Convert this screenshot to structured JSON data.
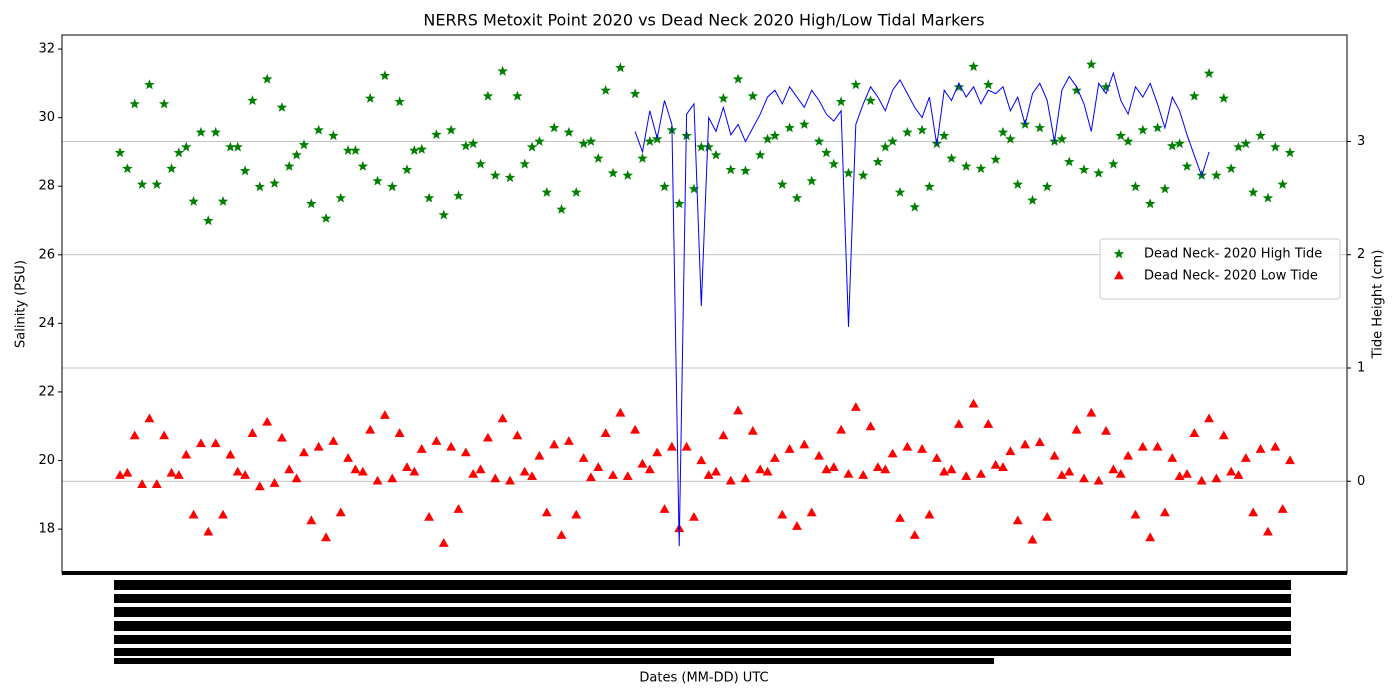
{
  "chart_data": {
    "type": "scatter",
    "title": "NERRS Metoxit Point 2020 vs Dead Neck 2020 High/Low Tidal Markers",
    "x_label": "Dates (MM-DD) UTC",
    "y_label": "Salinity (PSU)",
    "y2_label": "Tide Height (cm)",
    "ylim": [
      16.72,
      32.41
    ],
    "yticks": [
      18,
      20,
      22,
      24,
      26,
      28,
      30,
      32
    ],
    "y2lim": [
      -0.81,
      3.94
    ],
    "y2ticks": [
      0,
      1,
      2,
      3
    ],
    "grid": "y2",
    "legend": "center right",
    "series": [
      {
        "name": "Dead Neck- 2020 High Tide",
        "color": "#008000",
        "marker": "star",
        "axis": "y2",
        "values": [
          2.9,
          2.76,
          3.33,
          2.62,
          3.5,
          2.62,
          3.33,
          2.76,
          2.9,
          2.95,
          2.47,
          3.08,
          2.3,
          3.08,
          2.47,
          2.95,
          2.95,
          2.74,
          3.36,
          2.6,
          3.55,
          2.63,
          3.3,
          2.78,
          2.88,
          2.97,
          2.45,
          3.1,
          2.32,
          3.05,
          2.5,
          2.92,
          2.92,
          2.78,
          3.38,
          2.65,
          3.58,
          2.6,
          3.35,
          2.75,
          2.92,
          2.93,
          2.5,
          3.06,
          2.35,
          3.1,
          2.52,
          2.96,
          2.98,
          2.8,
          3.4,
          2.7,
          3.62,
          2.68,
          3.4,
          2.8,
          2.95,
          3.0,
          2.55,
          3.12,
          2.4,
          3.08,
          2.55,
          2.98,
          3.0,
          2.85,
          3.45,
          2.72,
          3.65,
          2.7,
          3.42,
          2.85,
          3.0,
          3.02,
          2.6,
          3.1,
          2.45,
          3.05,
          2.58,
          2.95,
          2.95,
          2.88,
          3.38,
          2.75,
          3.55,
          2.74,
          3.4,
          2.88,
          3.02,
          3.05,
          2.62,
          3.12,
          2.5,
          3.15,
          2.65,
          3.0,
          2.9,
          2.8,
          3.35,
          2.72,
          3.5,
          2.7,
          3.36,
          2.82,
          2.95,
          3.0,
          2.55,
          3.08,
          2.42,
          3.1,
          2.6,
          2.98,
          3.05,
          2.85,
          3.48,
          2.78,
          3.66,
          2.76,
          3.5,
          2.84,
          3.08,
          3.02,
          2.62,
          3.15,
          2.48,
          3.12,
          2.6,
          3.0,
          3.02,
          2.82,
          3.45,
          2.75,
          3.68,
          2.72,
          3.48,
          2.8,
          3.05,
          3.0,
          2.6,
          3.1,
          2.45,
          3.12,
          2.58,
          2.96,
          2.98,
          2.78,
          3.4,
          2.7,
          3.6,
          2.7,
          3.38,
          2.76,
          2.95,
          2.98,
          2.55,
          3.05,
          2.5,
          2.95,
          2.62,
          2.9
        ]
      },
      {
        "name": "Dead Neck- 2020 Low Tide",
        "color": "#ff0000",
        "marker": "triangle",
        "axis": "y2",
        "values": [
          0.05,
          0.07,
          0.4,
          -0.03,
          0.55,
          -0.03,
          0.4,
          0.07,
          0.05,
          0.23,
          -0.3,
          0.33,
          -0.45,
          0.33,
          -0.3,
          0.23,
          0.08,
          0.05,
          0.42,
          -0.05,
          0.52,
          -0.02,
          0.38,
          0.1,
          0.02,
          0.25,
          -0.35,
          0.3,
          -0.5,
          0.35,
          -0.28,
          0.2,
          0.1,
          0.08,
          0.45,
          0.0,
          0.58,
          0.02,
          0.42,
          0.12,
          0.08,
          0.28,
          -0.32,
          0.35,
          -0.55,
          0.3,
          -0.25,
          0.25,
          0.06,
          0.1,
          0.38,
          0.02,
          0.55,
          0.0,
          0.4,
          0.08,
          0.04,
          0.22,
          -0.28,
          0.32,
          -0.48,
          0.35,
          -0.3,
          0.2,
          0.03,
          0.12,
          0.42,
          0.05,
          0.6,
          0.04,
          0.45,
          0.15,
          0.1,
          0.25,
          -0.25,
          0.3,
          -0.42,
          0.3,
          -0.32,
          0.18,
          0.05,
          0.08,
          0.4,
          0.0,
          0.62,
          0.02,
          0.44,
          0.1,
          0.08,
          0.2,
          -0.3,
          0.28,
          -0.4,
          0.32,
          -0.28,
          0.22,
          0.1,
          0.12,
          0.45,
          0.06,
          0.65,
          0.05,
          0.48,
          0.12,
          0.1,
          0.24,
          -0.33,
          0.3,
          -0.48,
          0.28,
          -0.3,
          0.2,
          0.08,
          0.1,
          0.5,
          0.04,
          0.68,
          0.06,
          0.5,
          0.14,
          0.12,
          0.26,
          -0.35,
          0.32,
          -0.52,
          0.34,
          -0.32,
          0.22,
          0.05,
          0.08,
          0.45,
          0.02,
          0.6,
          0.0,
          0.44,
          0.1,
          0.06,
          0.22,
          -0.3,
          0.3,
          -0.5,
          0.3,
          -0.28,
          0.2,
          0.04,
          0.06,
          0.42,
          0.0,
          0.55,
          0.02,
          0.4,
          0.08,
          0.05,
          0.2,
          -0.28,
          0.28,
          -0.45,
          0.3,
          -0.25,
          0.18
        ]
      },
      {
        "color": "#0000ff",
        "marker": "line",
        "axis": "y",
        "values": [
          null,
          null,
          null,
          null,
          null,
          null,
          null,
          null,
          null,
          null,
          null,
          null,
          null,
          null,
          null,
          null,
          null,
          null,
          null,
          null,
          null,
          null,
          null,
          null,
          null,
          null,
          null,
          null,
          null,
          null,
          null,
          null,
          null,
          null,
          null,
          null,
          null,
          null,
          null,
          null,
          null,
          null,
          null,
          null,
          null,
          null,
          null,
          null,
          null,
          null,
          null,
          null,
          null,
          null,
          null,
          null,
          null,
          null,
          null,
          null,
          null,
          null,
          null,
          null,
          null,
          null,
          null,
          null,
          null,
          null,
          29.6,
          29.0,
          30.2,
          29.4,
          30.5,
          29.8,
          17.5,
          30.1,
          30.4,
          24.5,
          30.0,
          29.6,
          30.3,
          29.5,
          29.8,
          29.3,
          29.7,
          30.1,
          30.6,
          30.8,
          30.4,
          30.9,
          30.6,
          30.3,
          30.8,
          30.5,
          30.1,
          29.9,
          30.2,
          23.9,
          29.8,
          30.4,
          30.9,
          30.6,
          30.2,
          30.8,
          31.1,
          30.7,
          30.3,
          30.0,
          30.6,
          29.2,
          30.8,
          30.5,
          31.0,
          30.6,
          30.9,
          30.4,
          30.8,
          30.7,
          30.9,
          30.2,
          30.6,
          29.8,
          30.7,
          31.0,
          30.5,
          29.3,
          30.8,
          31.2,
          30.9,
          30.4,
          29.6,
          31.0,
          30.7,
          31.3,
          30.5,
          30.1,
          30.9,
          30.6,
          31.0,
          30.4,
          29.7,
          30.6,
          30.2,
          29.5,
          28.9,
          28.3,
          29.0,
          null,
          null,
          null,
          null,
          null,
          null,
          null,
          null,
          null,
          null,
          null
        ]
      }
    ]
  }
}
